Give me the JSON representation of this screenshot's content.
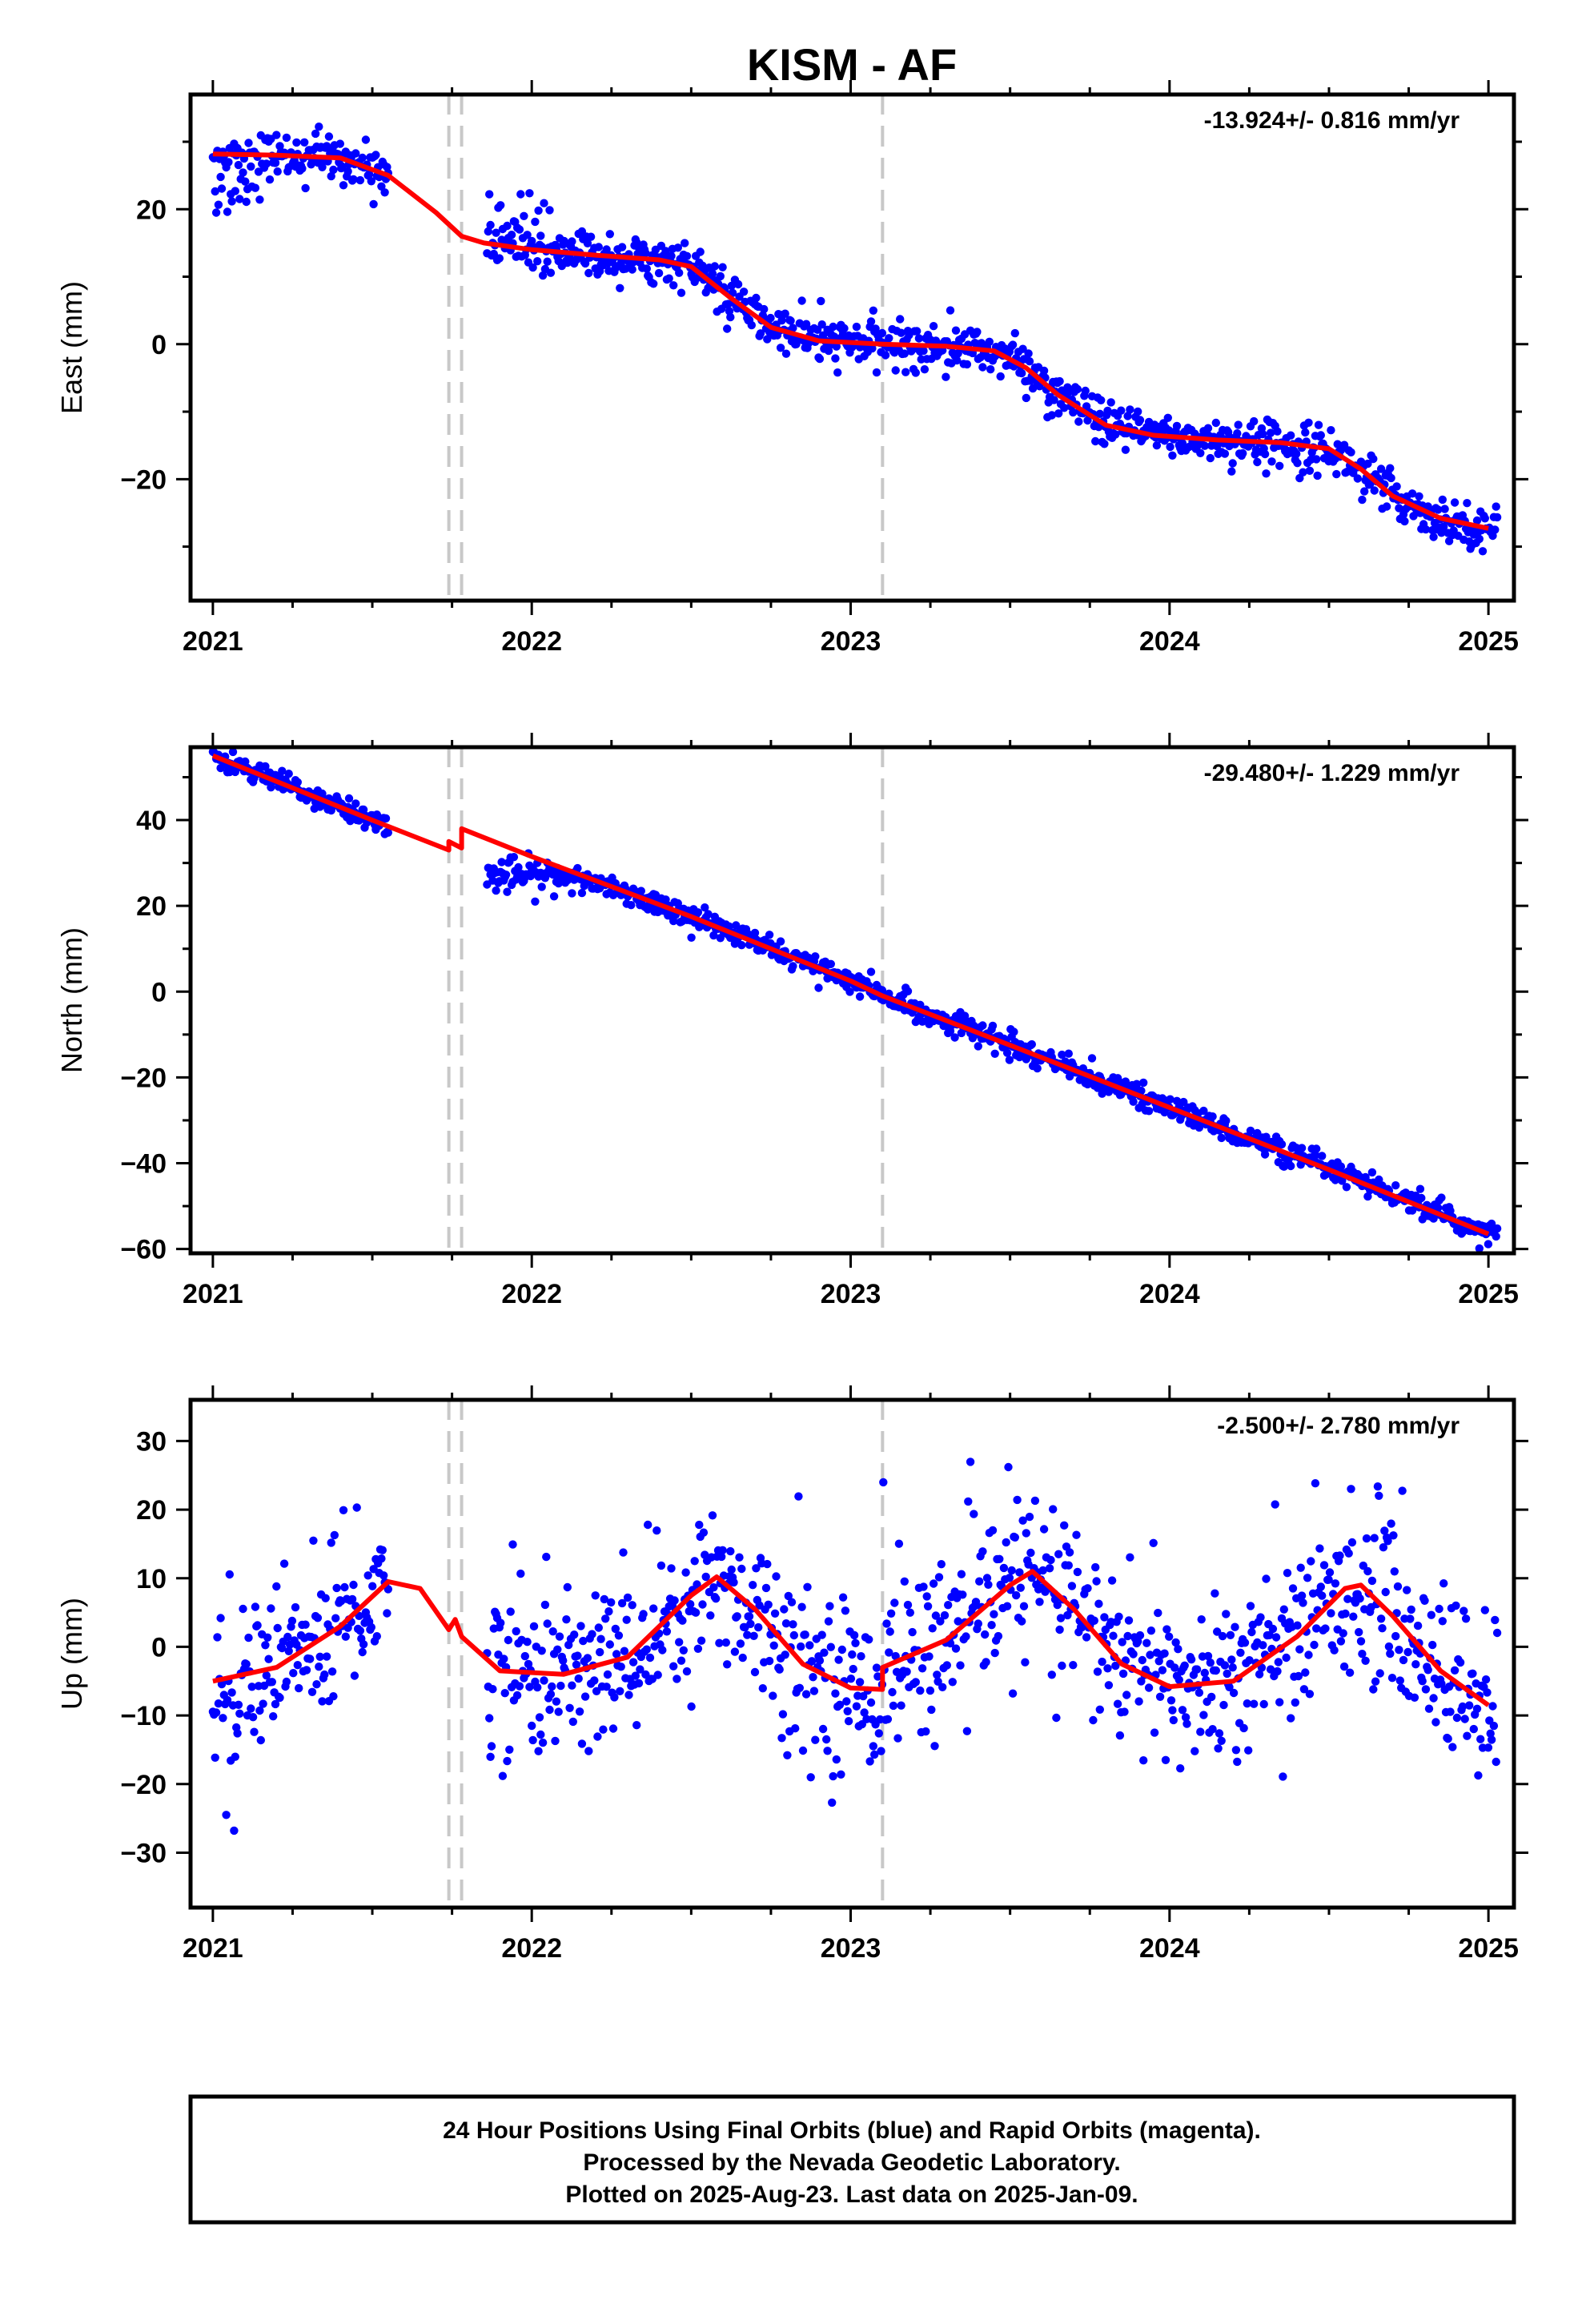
{
  "title": "KISM - AF",
  "colors": {
    "data": "#0000ff",
    "model": "#ff0000",
    "offset_line": "#c8c8c8",
    "axis": "#000000"
  },
  "chart_data": [
    {
      "type": "scatter",
      "component": "east",
      "ylabel": "East (mm)",
      "rate_text": "-13.924+/- 0.816 mm/yr",
      "xlim": [
        2020.93,
        2025.08
      ],
      "ylim": [
        -38,
        37
      ],
      "y_ticks": [
        20,
        0,
        -20
      ],
      "y_tick_labels": [
        "20",
        "0",
        "−20"
      ],
      "x_ticks": [
        2021,
        2022,
        2023,
        2024,
        2025
      ],
      "model": [
        [
          2021.0,
          28.2
        ],
        [
          2021.2,
          28.0
        ],
        [
          2021.4,
          27.6
        ],
        [
          2021.55,
          25.0
        ],
        [
          2021.7,
          19.5
        ],
        [
          2021.78,
          16.0
        ],
        [
          2021.85,
          15.0
        ],
        [
          2022.0,
          14.0
        ],
        [
          2022.2,
          13.2
        ],
        [
          2022.4,
          12.5
        ],
        [
          2022.5,
          11.5
        ],
        [
          2022.62,
          7.0
        ],
        [
          2022.75,
          2.5
        ],
        [
          2022.9,
          0.5
        ],
        [
          2023.1,
          0.0
        ],
        [
          2023.3,
          -0.3
        ],
        [
          2023.45,
          -1.0
        ],
        [
          2023.55,
          -3.5
        ],
        [
          2023.65,
          -7.5
        ],
        [
          2023.8,
          -12.0
        ],
        [
          2023.95,
          -13.5
        ],
        [
          2024.15,
          -14.2
        ],
        [
          2024.35,
          -14.6
        ],
        [
          2024.5,
          -15.5
        ],
        [
          2024.6,
          -18.5
        ],
        [
          2024.7,
          -22.5
        ],
        [
          2024.85,
          -25.8
        ],
        [
          2025.0,
          -27.3
        ]
      ]
    },
    {
      "type": "scatter",
      "component": "north",
      "ylabel": "North (mm)",
      "rate_text": "-29.480+/- 1.229 mm/yr",
      "xlim": [
        2020.93,
        2025.08
      ],
      "ylim": [
        -61,
        57
      ],
      "y_ticks": [
        40,
        20,
        0,
        -20,
        -40,
        -60
      ],
      "y_tick_labels": [
        "40",
        "20",
        "0",
        "−20",
        "−40",
        "−60"
      ],
      "x_ticks": [
        2021,
        2022,
        2023,
        2024,
        2025
      ],
      "model": [
        [
          2021.0,
          55.0
        ],
        [
          2021.25,
          47.5
        ],
        [
          2021.5,
          40.0
        ],
        [
          2021.74,
          33.0
        ],
        [
          2021.74,
          35.0
        ],
        [
          2021.78,
          33.5
        ],
        [
          2021.78,
          38.0
        ],
        [
          2022.0,
          31.5
        ],
        [
          2022.5,
          17.5
        ],
        [
          2023.0,
          2.5
        ],
        [
          2023.1,
          -1.0
        ],
        [
          2023.5,
          -12.5
        ],
        [
          2024.0,
          -27.0
        ],
        [
          2024.5,
          -41.5
        ],
        [
          2025.0,
          -56.5
        ]
      ]
    },
    {
      "type": "scatter",
      "component": "up",
      "ylabel": "Up (mm)",
      "rate_text": "-2.500+/- 2.780 mm/yr",
      "xlim": [
        2020.93,
        2025.08
      ],
      "ylim": [
        -38,
        36
      ],
      "y_ticks": [
        30,
        20,
        10,
        0,
        -10,
        -20,
        -30
      ],
      "y_tick_labels": [
        "30",
        "20",
        "10",
        "0",
        "−10",
        "−20",
        "−30"
      ],
      "x_ticks": [
        2021,
        2022,
        2023,
        2024,
        2025
      ],
      "model": [
        [
          2021.0,
          -5.0
        ],
        [
          2021.2,
          -3.0
        ],
        [
          2021.4,
          3.0
        ],
        [
          2021.55,
          9.5
        ],
        [
          2021.65,
          8.5
        ],
        [
          2021.74,
          2.5
        ],
        [
          2021.76,
          4.0
        ],
        [
          2021.78,
          1.5
        ],
        [
          2021.9,
          -3.5
        ],
        [
          2022.1,
          -4.0
        ],
        [
          2022.3,
          -1.5
        ],
        [
          2022.5,
          7.5
        ],
        [
          2022.58,
          10.2
        ],
        [
          2022.7,
          5.5
        ],
        [
          2022.85,
          -2.5
        ],
        [
          2023.0,
          -6.0
        ],
        [
          2023.1,
          -6.2
        ],
        [
          2023.1,
          -3.0
        ],
        [
          2023.3,
          1.0
        ],
        [
          2023.5,
          9.0
        ],
        [
          2023.57,
          11.0
        ],
        [
          2023.7,
          5.5
        ],
        [
          2023.85,
          -2.5
        ],
        [
          2024.0,
          -5.8
        ],
        [
          2024.2,
          -5.0
        ],
        [
          2024.4,
          1.5
        ],
        [
          2024.55,
          8.5
        ],
        [
          2024.6,
          9.0
        ],
        [
          2024.7,
          4.5
        ],
        [
          2024.85,
          -3.5
        ],
        [
          2025.0,
          -8.5
        ]
      ]
    }
  ],
  "data_segments": [
    [
      2021.0,
      2021.55
    ],
    [
      2021.86,
      2025.03
    ]
  ],
  "offsets_x": [
    2021.74,
    2021.78,
    2023.1
  ],
  "footer": {
    "line1": "24 Hour Positions Using Final Orbits (blue) and Rapid Orbits (magenta).",
    "line2": "Processed by the Nevada Geodetic Laboratory.",
    "line3": "Plotted on 2025-Aug-23. Last data on 2025-Jan-09."
  }
}
